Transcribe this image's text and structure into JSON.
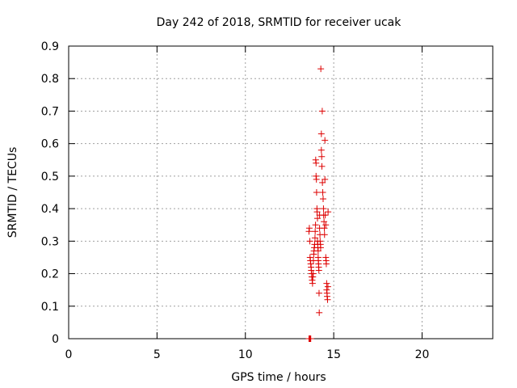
{
  "chart_data": {
    "type": "scatter",
    "title": "Day 242 of 2018, SRMTID for receiver ucak",
    "xlabel": "GPS time / hours",
    "ylabel": "SRMTID / TECUs",
    "xlim": [
      0,
      24
    ],
    "ylim": [
      0,
      0.9
    ],
    "xticks": [
      0,
      5,
      10,
      15,
      20
    ],
    "yticks": [
      0,
      0.1,
      0.2,
      0.3,
      0.4,
      0.5,
      0.6,
      0.7,
      0.8,
      0.9
    ],
    "grid": true,
    "marker": "+",
    "colors": {
      "series": "#dd0000",
      "grid": "#a0a0a0",
      "axis": "#000000"
    },
    "series": [
      {
        "name": "SRMTID",
        "points": [
          [
            13.6,
            0.0
          ],
          [
            13.62,
            0.0
          ],
          [
            13.65,
            0.0
          ],
          [
            13.68,
            0.0
          ],
          [
            13.7,
            0.0
          ],
          [
            13.6,
            0.33
          ],
          [
            13.62,
            0.34
          ],
          [
            13.65,
            0.3
          ],
          [
            13.66,
            0.25
          ],
          [
            13.68,
            0.24
          ],
          [
            13.7,
            0.23
          ],
          [
            13.72,
            0.22
          ],
          [
            13.73,
            0.21
          ],
          [
            13.75,
            0.2
          ],
          [
            13.76,
            0.19
          ],
          [
            13.78,
            0.18
          ],
          [
            13.8,
            0.17
          ],
          [
            13.82,
            0.19
          ],
          [
            13.84,
            0.2
          ],
          [
            13.85,
            0.24
          ],
          [
            13.87,
            0.26
          ],
          [
            13.88,
            0.27
          ],
          [
            13.9,
            0.28
          ],
          [
            13.92,
            0.29
          ],
          [
            13.94,
            0.31
          ],
          [
            13.95,
            0.33
          ],
          [
            13.97,
            0.35
          ],
          [
            13.98,
            0.55
          ],
          [
            14.0,
            0.54
          ],
          [
            14.0,
            0.5
          ],
          [
            14.02,
            0.49
          ],
          [
            14.03,
            0.45
          ],
          [
            14.05,
            0.4
          ],
          [
            14.06,
            0.39
          ],
          [
            14.08,
            0.37
          ],
          [
            14.08,
            0.3
          ],
          [
            14.1,
            0.29
          ],
          [
            14.1,
            0.28
          ],
          [
            14.12,
            0.27
          ],
          [
            14.12,
            0.25
          ],
          [
            14.13,
            0.24
          ],
          [
            14.14,
            0.23
          ],
          [
            14.15,
            0.22
          ],
          [
            14.16,
            0.21
          ],
          [
            14.17,
            0.14
          ],
          [
            14.18,
            0.08
          ],
          [
            14.2,
            0.38
          ],
          [
            14.2,
            0.34
          ],
          [
            14.22,
            0.32
          ],
          [
            14.23,
            0.3
          ],
          [
            14.25,
            0.29
          ],
          [
            14.26,
            0.28
          ],
          [
            14.27,
            0.83
          ],
          [
            14.3,
            0.63
          ],
          [
            14.3,
            0.58
          ],
          [
            14.32,
            0.56
          ],
          [
            14.33,
            0.53
          ],
          [
            14.35,
            0.7
          ],
          [
            14.36,
            0.48
          ],
          [
            14.38,
            0.45
          ],
          [
            14.4,
            0.43
          ],
          [
            14.42,
            0.4
          ],
          [
            14.43,
            0.38
          ],
          [
            14.45,
            0.36
          ],
          [
            14.47,
            0.34
          ],
          [
            14.48,
            0.32
          ],
          [
            14.5,
            0.61
          ],
          [
            14.5,
            0.49
          ],
          [
            14.52,
            0.38
          ],
          [
            14.55,
            0.35
          ],
          [
            14.55,
            0.25
          ],
          [
            14.57,
            0.24
          ],
          [
            14.58,
            0.23
          ],
          [
            14.6,
            0.17
          ],
          [
            14.6,
            0.15
          ],
          [
            14.62,
            0.14
          ],
          [
            14.63,
            0.13
          ],
          [
            14.65,
            0.12
          ],
          [
            14.67,
            0.16
          ],
          [
            14.68,
            0.39
          ]
        ]
      }
    ]
  }
}
